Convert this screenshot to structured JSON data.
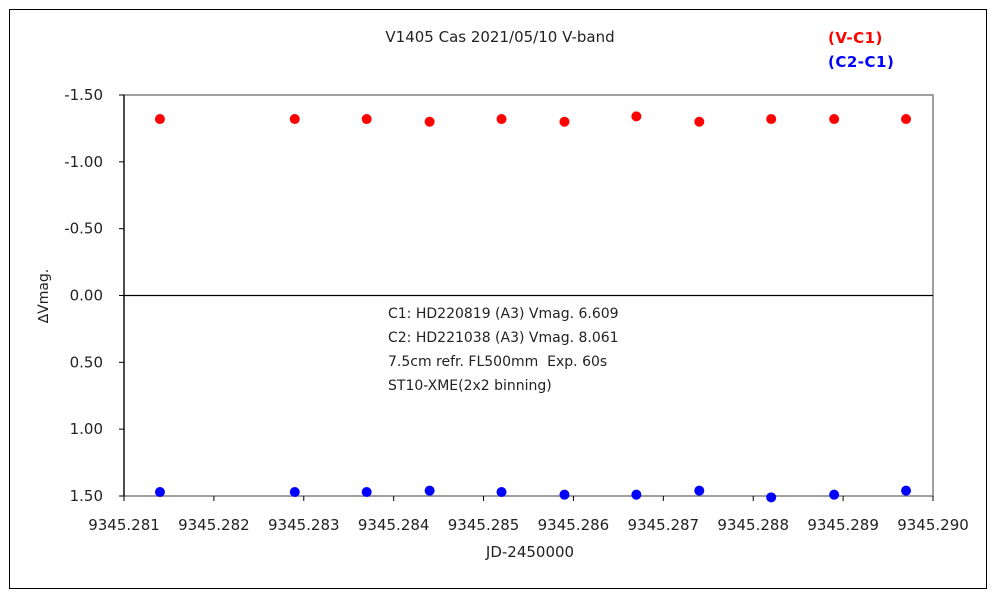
{
  "chart_data": {
    "type": "scatter",
    "title": "V1405 Cas    2021/05/10    V-band",
    "xlabel": "JD-2450000",
    "ylabel": "∆Vmag.",
    "xlim": [
      9345.281,
      9345.29
    ],
    "ylim": [
      -1.5,
      1.5
    ],
    "y_inverted": true,
    "x_ticks": [
      "9345.281",
      "9345.282",
      "9345.283",
      "9345.284",
      "9345.285",
      "9345.286",
      "9345.287",
      "9345.288",
      "9345.289",
      "9345.290"
    ],
    "y_ticks": [
      "-1.50",
      "-1.00",
      "-0.50",
      "0.00",
      "0.50",
      "1.00",
      "1.50"
    ],
    "grid": true,
    "legend_position": "top-right",
    "series": [
      {
        "name": "(V-C1)",
        "color": "#ff0000",
        "x": [
          9345.2814,
          9345.2829,
          9345.2837,
          9345.2844,
          9345.2852,
          9345.2859,
          9345.2867,
          9345.2874,
          9345.2882,
          9345.2889,
          9345.2897
        ],
        "y": [
          -1.32,
          -1.32,
          -1.32,
          -1.3,
          -1.32,
          -1.3,
          -1.34,
          -1.3,
          -1.32,
          -1.32,
          -1.32
        ]
      },
      {
        "name": "(C2-C1)",
        "color": "#0000ff",
        "x": [
          9345.2814,
          9345.2829,
          9345.2837,
          9345.2844,
          9345.2852,
          9345.2859,
          9345.2867,
          9345.2874,
          9345.2882,
          9345.2889,
          9345.2897
        ],
        "y": [
          1.47,
          1.47,
          1.47,
          1.46,
          1.47,
          1.49,
          1.49,
          1.46,
          1.51,
          1.49,
          1.46
        ]
      }
    ],
    "annotations": [
      "C1: HD220819 (A3) Vmag. 6.609",
      "C2: HD221038 (A3) Vmag. 8.061",
      "7.5cm refr. FL500mm  Exp. 60s",
      "ST10-XME(2x2 binning)"
    ]
  }
}
